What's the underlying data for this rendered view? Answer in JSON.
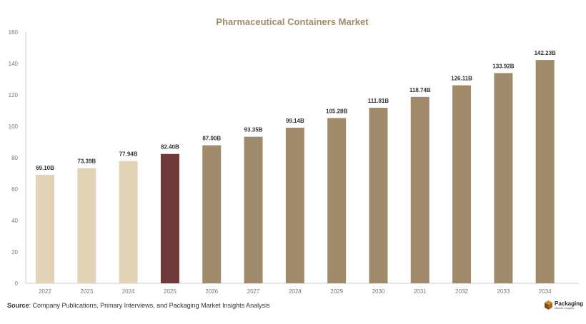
{
  "chart_data": {
    "type": "bar",
    "title": "Pharmaceutical Containers Market",
    "categories": [
      "2022",
      "2023",
      "2024",
      "2025",
      "2026",
      "2027",
      "2028",
      "2029",
      "2030",
      "2031",
      "2032",
      "2033",
      "2034"
    ],
    "values": [
      69.1,
      73.39,
      77.94,
      82.4,
      87.9,
      93.35,
      99.14,
      105.28,
      111.81,
      118.74,
      126.11,
      133.92,
      142.23
    ],
    "data_labels": [
      "69.10B",
      "73.39B",
      "77.94B",
      "82.40B",
      "87.90B",
      "93.35B",
      "99.14B",
      "105.28B",
      "111.81B",
      "118.74B",
      "126.11B",
      "133.92B",
      "142.23B"
    ],
    "ylim": [
      0,
      160
    ],
    "yticks": [
      0,
      20,
      40,
      60,
      80,
      100,
      120,
      140,
      160
    ],
    "xlabel": "",
    "ylabel": "",
    "grid": false,
    "colors": {
      "historical": "#e3d3b6",
      "current": "#6e3a3a",
      "forecast": "#a08b6c",
      "title": "#a08b6c"
    },
    "bar_color_groups": [
      "historical",
      "historical",
      "historical",
      "current",
      "forecast",
      "forecast",
      "forecast",
      "forecast",
      "forecast",
      "forecast",
      "forecast",
      "forecast",
      "forecast"
    ]
  },
  "source": {
    "label": "Source",
    "text": ": Company Publications, Primary Interviews, and Packaging Market Insights Analysis"
  },
  "logo": {
    "line1": "Packaging",
    "line2": "Market Insights",
    "icon": "box-icon"
  }
}
